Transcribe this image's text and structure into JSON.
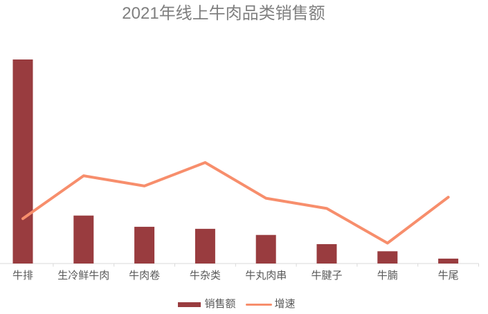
{
  "chart_data": {
    "type": "combo",
    "title": "2021年线上牛肉品类销售额",
    "categories": [
      "牛排",
      "生冷鲜牛肉",
      "牛肉卷",
      "牛杂类",
      "牛丸肉串",
      "牛腱子",
      "牛腩",
      "牛尾"
    ],
    "series": [
      {
        "name": "销售额",
        "type": "bar",
        "color": "#993C3F",
        "values": [
          100,
          23.5,
          18,
          17,
          14,
          9.5,
          6,
          2.4
        ]
      },
      {
        "name": "增速",
        "type": "line",
        "color": "#F78E6C",
        "values": [
          22,
          43,
          38,
          49.5,
          32,
          27,
          10,
          32.5
        ]
      }
    ],
    "xlabel": "",
    "ylabel": "",
    "ylim": [
      0,
      100
    ],
    "value_axis_visible": false,
    "grid": false,
    "legend_position": "bottom",
    "note": "No value axis, gridlines or data labels are shown in the image; series values are relative estimates scaled so that 牛排 = 100."
  },
  "colors": {
    "background": "#FFFFFF",
    "title": "#7F7F7F",
    "axis": "#D9D9D9",
    "tick": "#D9D9D9",
    "category_label": "#595959",
    "legend_label": "#595959"
  }
}
